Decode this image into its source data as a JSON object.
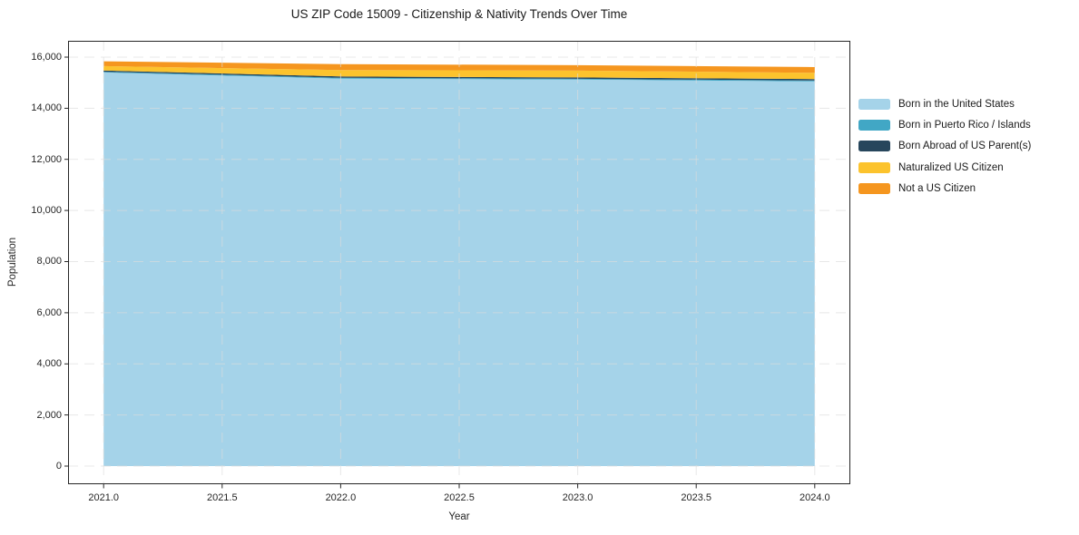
{
  "title": "US ZIP Code 15009 - Citizenship & Nativity Trends Over Time",
  "chart_data": {
    "type": "area",
    "stacked": true,
    "title": "US ZIP Code 15009 - Citizenship & Nativity Trends Over Time",
    "xlabel": "Year",
    "ylabel": "Population",
    "x": [
      2021,
      2022,
      2023,
      2024
    ],
    "series": [
      {
        "name": "Born in the United States",
        "color": "#a5d3e9",
        "values": [
          15400,
          15160,
          15120,
          15050
        ]
      },
      {
        "name": "Born in Puerto Rico / Islands",
        "color": "#41a7c5",
        "values": [
          30,
          35,
          30,
          35
        ]
      },
      {
        "name": "Born Abroad of US Parent(s)",
        "color": "#27465c",
        "values": [
          45,
          50,
          55,
          55
        ]
      },
      {
        "name": "Naturalized US Citizen",
        "color": "#fcc32d",
        "values": [
          175,
          250,
          265,
          245
        ]
      },
      {
        "name": "Not a US Citizen",
        "color": "#f5961f",
        "values": [
          185,
          230,
          215,
          225
        ]
      }
    ],
    "xlim": [
      2020.85,
      2024.15
    ],
    "ylim": [
      -709,
      16638
    ],
    "x_ticks": [
      2021.0,
      2021.5,
      2022.0,
      2022.5,
      2023.0,
      2023.5,
      2024.0
    ],
    "x_tick_labels": [
      "2021.0",
      "2021.5",
      "2022.0",
      "2022.5",
      "2023.0",
      "2023.5",
      "2024.0"
    ],
    "y_ticks": [
      0,
      2000,
      4000,
      6000,
      8000,
      10000,
      12000,
      14000,
      16000
    ],
    "y_tick_labels": [
      "0",
      "2,000",
      "4,000",
      "6,000",
      "8,000",
      "10,000",
      "12,000",
      "14,000",
      "16,000"
    ],
    "grid": true,
    "grid_color": "#dcdcdc",
    "spine_color": "#262626",
    "legend_position": "right of plot, no frame"
  }
}
